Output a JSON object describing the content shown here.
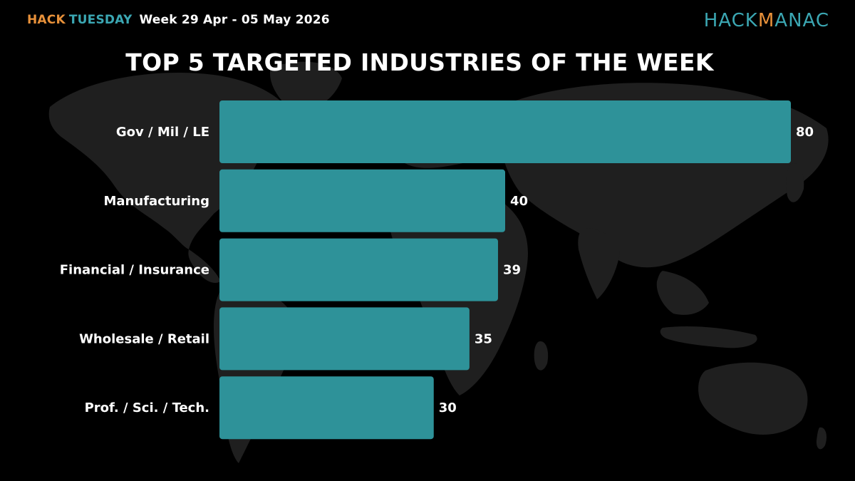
{
  "header": {
    "brand_hack": "HACK",
    "brand_tuesday": "TUESDAY",
    "week": "Week 29 Apr - 05 May 2026"
  },
  "logo": {
    "part1": "HACK",
    "part2": "M",
    "part3": "ANAC"
  },
  "colors": {
    "bar": "#2e9299",
    "brand_orange": "#e8913a",
    "brand_teal": "#3ba7b3",
    "background": "#000000",
    "map": "#1f1f1f"
  },
  "chart_data": {
    "type": "bar",
    "orientation": "horizontal",
    "title": "TOP 5 TARGETED INDUSTRIES OF THE WEEK",
    "categories": [
      "Gov / Mil / LE",
      "Manufacturing",
      "Financial / Insurance",
      "Wholesale / Retail",
      "Prof. / Sci. / Tech."
    ],
    "values": [
      80,
      40,
      39,
      35,
      30
    ],
    "xlim": [
      0,
      80
    ],
    "grid": false,
    "legend": "none"
  }
}
